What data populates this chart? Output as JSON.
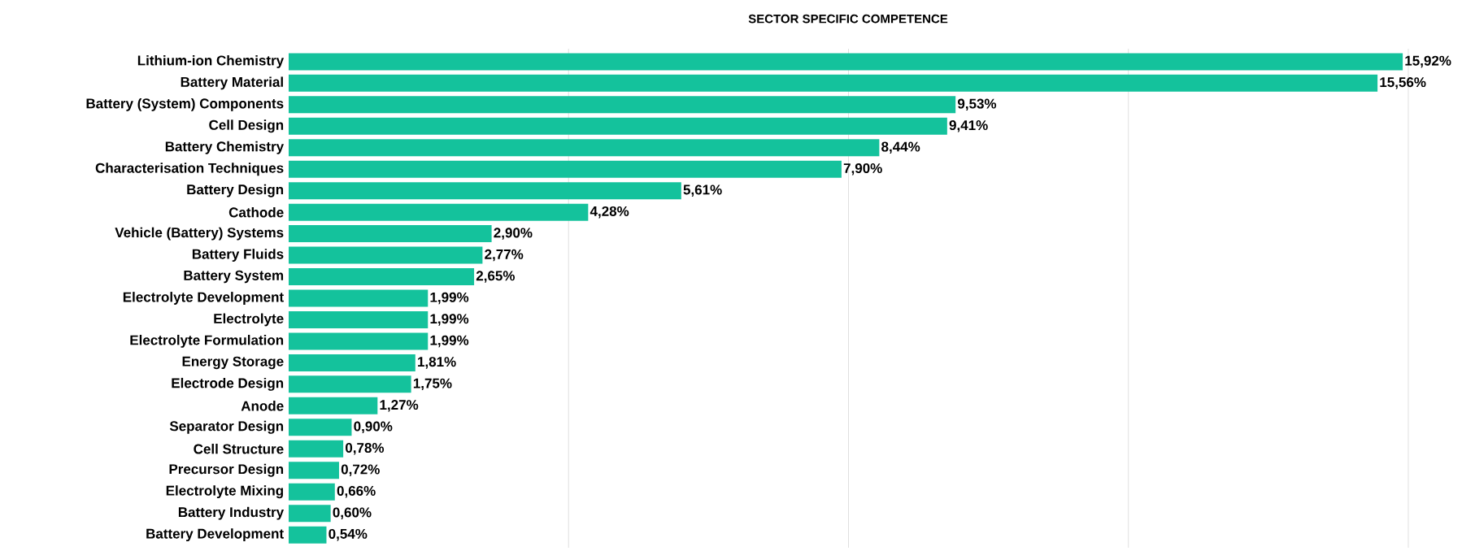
{
  "chart_data": {
    "type": "bar",
    "orientation": "horizontal",
    "title": "SECTOR SPECIFIC COMPETENCE",
    "categories": [
      "Lithium-ion Chemistry",
      "Battery Material",
      "Battery (System) Components",
      "Cell Design",
      "Battery Chemistry",
      "Characterisation Techniques",
      "Battery Design",
      "Cathode",
      "Vehicle (Battery) Systems",
      "Battery Fluids",
      "Battery System",
      "Electrolyte Development",
      "Electrolyte",
      "Electrolyte Formulation",
      "Energy Storage",
      "Electrode Design",
      "Anode",
      "Separator Design",
      "Cell Structure",
      "Precursor Design",
      "Electrolyte Mixing",
      "Battery Industry",
      "Battery Development"
    ],
    "values": [
      15.92,
      15.56,
      9.53,
      9.41,
      8.44,
      7.9,
      5.61,
      4.28,
      2.9,
      2.77,
      2.65,
      1.99,
      1.99,
      1.99,
      1.81,
      1.75,
      1.27,
      0.9,
      0.78,
      0.72,
      0.66,
      0.6,
      0.54
    ],
    "value_labels": [
      "15,92%",
      "15,56%",
      "9,53%",
      "9,41%",
      "8,44%",
      "7,90%",
      "5,61%",
      "4,28%",
      "2,90%",
      "2,77%",
      "2,65%",
      "1,99%",
      "1,99%",
      "1,99%",
      "1,81%",
      "1,75%",
      "1,27%",
      "0,90%",
      "0,78%",
      "0,72%",
      "0,66%",
      "0,60%",
      "0,54%"
    ],
    "color": "#14c29c",
    "xlim": [
      0,
      16
    ],
    "xticks": [
      {
        "value": 4,
        "label": null
      },
      {
        "value": 8,
        "label": null
      },
      {
        "value": 12,
        "label": null
      },
      {
        "value": 16,
        "label": null
      }
    ],
    "grid": "x",
    "tick_labels": "y"
  }
}
